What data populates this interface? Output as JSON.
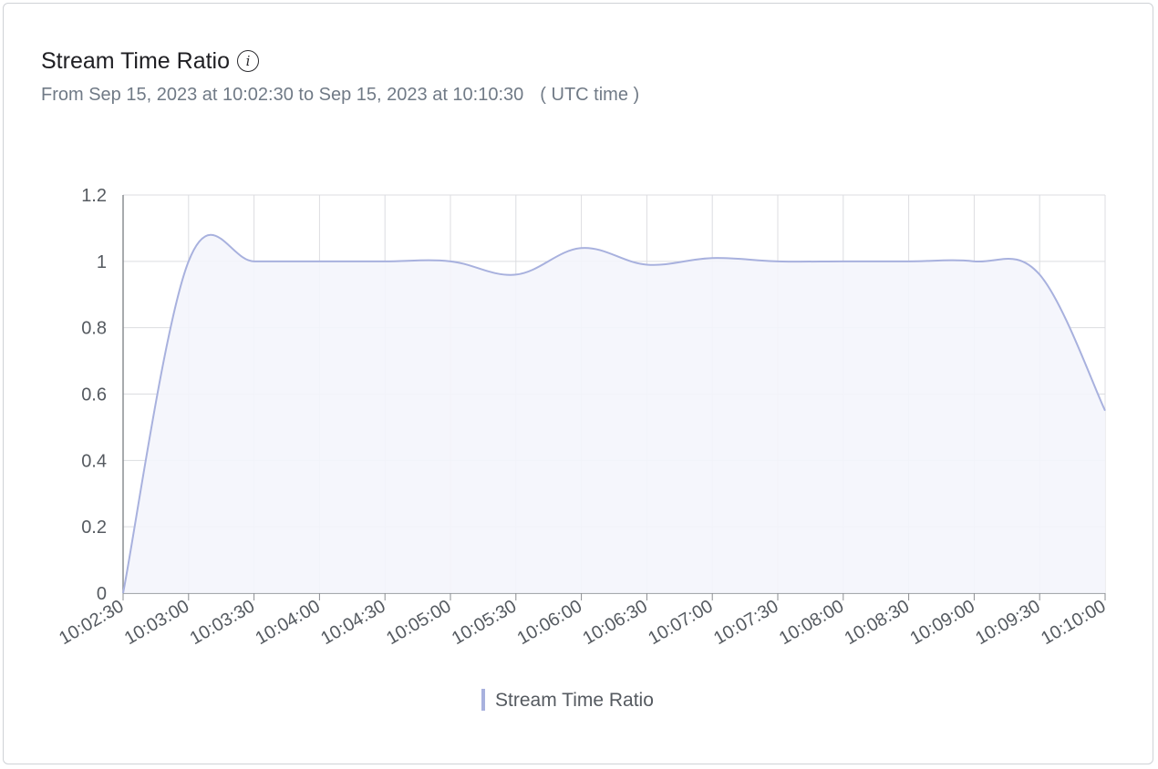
{
  "header": {
    "title": "Stream Time Ratio",
    "info_icon": "info-icon",
    "range_text": "From Sep 15, 2023 at 10:02:30 to Sep 15, 2023 at 10:10:30",
    "timezone_text": "( UTC time )"
  },
  "colors": {
    "line": "#a8b1de",
    "area": "#f4f5fc",
    "grid": "#dcdde1",
    "axis": "#8a8d92"
  },
  "chart_data": {
    "type": "area",
    "title": "Stream Time Ratio",
    "xlabel": "",
    "ylabel": "",
    "x": [
      "10:02:30",
      "10:03:00",
      "10:03:30",
      "10:04:00",
      "10:04:30",
      "10:05:00",
      "10:05:30",
      "10:06:00",
      "10:06:30",
      "10:07:00",
      "10:07:30",
      "10:08:00",
      "10:08:30",
      "10:09:00",
      "10:09:30",
      "10:10:00"
    ],
    "series": [
      {
        "name": "Stream Time Ratio",
        "values": [
          0,
          1,
          1,
          1,
          1,
          1,
          0.96,
          1.04,
          0.99,
          1.01,
          1,
          1,
          1,
          1,
          0.96,
          0.55
        ]
      }
    ],
    "ylim": [
      0,
      1.2
    ],
    "yticks": [
      "0",
      "0.2",
      "0.4",
      "0.6",
      "0.8",
      "1",
      "1.2"
    ],
    "grid": true,
    "legend_position": "bottom-center",
    "smooth": true
  }
}
